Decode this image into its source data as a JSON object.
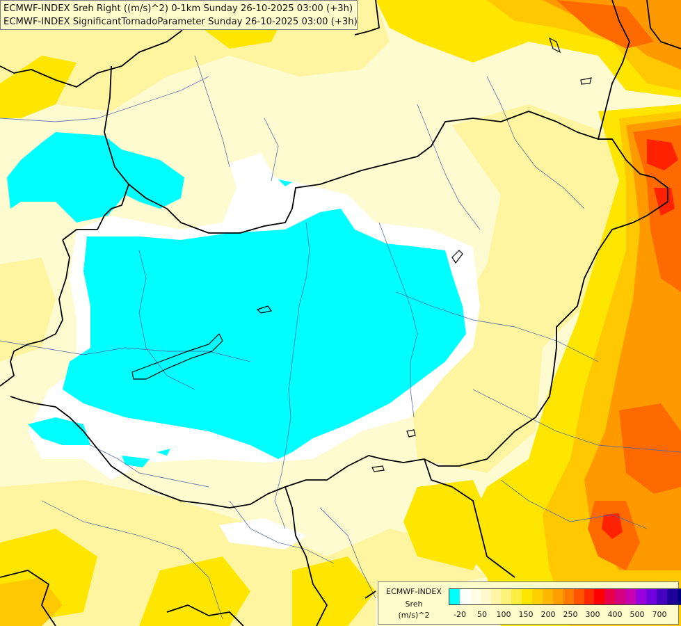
{
  "header": {
    "line1": "ECMWF-INDEX Sreh Right ((m/s)^2) 0-1km Sunday 26-10-2025 03:00 (+3h)",
    "line2": "ECMWF-INDEX SignificantTornadoParameter Sunday 26-10-2025 03:00 (+3h)"
  },
  "legend": {
    "source": "ECMWF-INDEX",
    "parameter": "Sreh",
    "unit": "(m/s)^2",
    "colors": [
      "#00ffff",
      "#ffffff",
      "#fffde6",
      "#fffacd",
      "#fff5a8",
      "#fff27a",
      "#ffee40",
      "#ffe600",
      "#ffd000",
      "#ffb800",
      "#ff9e00",
      "#ff7a00",
      "#ff5500",
      "#ff2a00",
      "#ff0000",
      "#e8004a",
      "#d4007d",
      "#c800b0",
      "#9900dd",
      "#6f00dd",
      "#4500c0",
      "#1f0099",
      "#000080"
    ],
    "ticks": [
      "-20",
      "50",
      "100",
      "150",
      "200",
      "250",
      "300",
      "400",
      "500",
      "700"
    ]
  },
  "map": {
    "colors": {
      "cyan": "#00ffff",
      "white": "#ffffff",
      "pale": "#fffcd2",
      "light_yellow": "#fff5a0",
      "yellow": "#ffe600",
      "gold": "#ffc800",
      "orange": "#ff9900",
      "dark_orange": "#ff6a00",
      "red": "#ff2200",
      "border": "#000000",
      "river": "#4b66a6"
    }
  }
}
